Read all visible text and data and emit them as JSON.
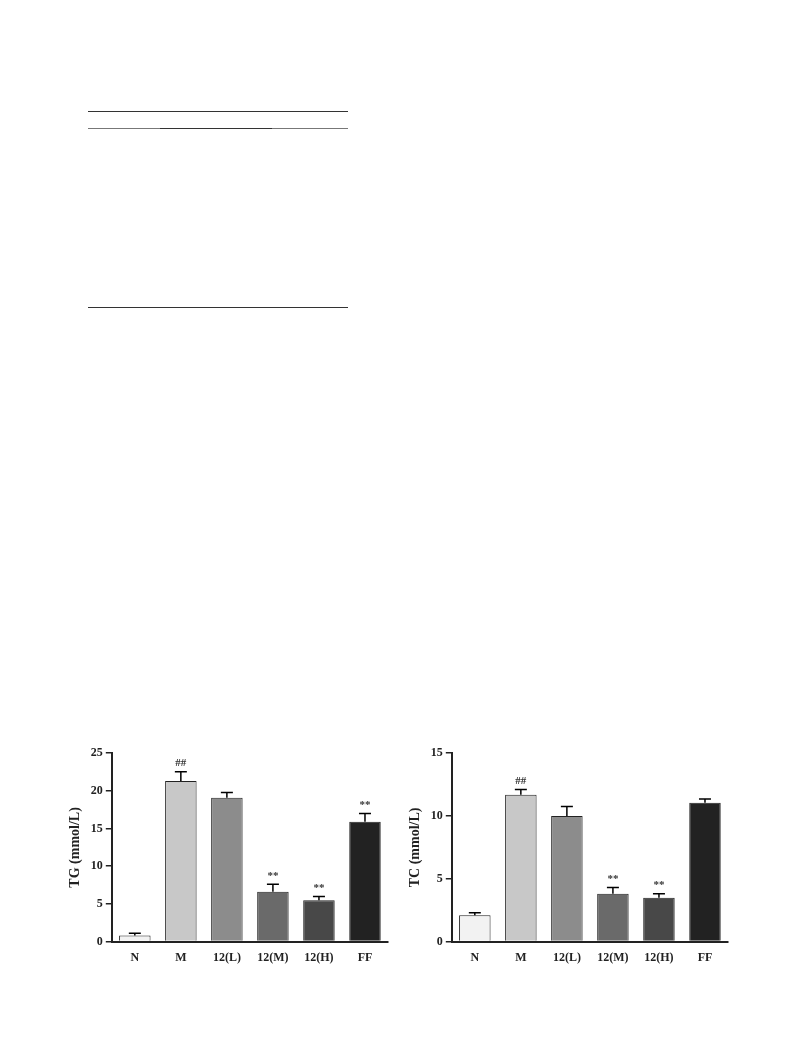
{
  "chart_data": [
    {
      "type": "bar",
      "ylabel": "TG (mmol/L)",
      "categories": [
        "N",
        "M",
        "12(L)",
        "12(M)",
        "12(H)",
        "FF"
      ],
      "values": [
        0.8,
        21.3,
        19.1,
        6.6,
        5.5,
        15.9
      ],
      "errors": [
        0.3,
        1.25,
        0.7,
        1.0,
        0.5,
        1.1
      ],
      "colors": [
        "#f2f2f2",
        "#c8c8c8",
        "#8c8c8c",
        "#6a6a6a",
        "#484848",
        "#222222"
      ],
      "ylim": [
        0,
        25
      ],
      "yticks": [
        0,
        5,
        10,
        15,
        20,
        25
      ],
      "annotations": [
        {
          "text": "##",
          "x": "M",
          "y": 22.55
        },
        {
          "text": "**",
          "x": "12(M)",
          "y": 7.6
        },
        {
          "text": "**",
          "x": "12(H)",
          "y": 6.0
        },
        {
          "text": "**",
          "x": "FF",
          "y": 17.0
        }
      ]
    },
    {
      "type": "bar",
      "ylabel": "TC (mmol/L)",
      "categories": [
        "N",
        "M",
        "12(L)",
        "12(M)",
        "12(H)",
        "FF"
      ],
      "values": [
        2.1,
        11.7,
        10.0,
        3.8,
        3.5,
        11.05
      ],
      "errors": [
        0.2,
        0.4,
        0.75,
        0.5,
        0.3,
        0.3
      ],
      "colors": [
        "#f2f2f2",
        "#c8c8c8",
        "#8c8c8c",
        "#6a6a6a",
        "#484848",
        "#222222"
      ],
      "ylim": [
        0,
        15
      ],
      "yticks": [
        0,
        5,
        10,
        15
      ],
      "annotations": [
        {
          "text": "##",
          "x": "M",
          "y": 12.1
        },
        {
          "text": "**",
          "x": "12(M)",
          "y": 4.3
        },
        {
          "text": "**",
          "x": "12(H)",
          "y": 3.8
        }
      ]
    }
  ]
}
